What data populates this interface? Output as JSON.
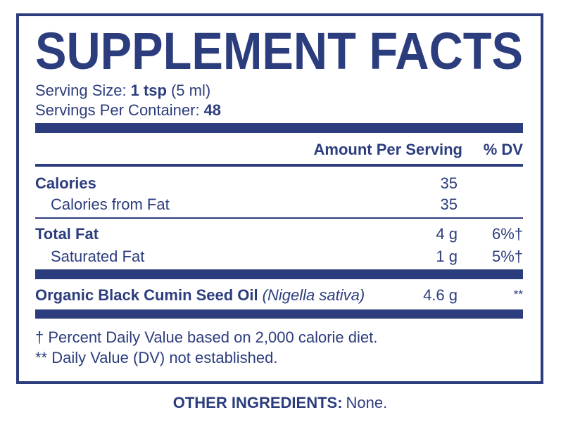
{
  "title": "SUPPLEMENT FACTS",
  "serving_size": {
    "label": "Serving Size:",
    "value": "1 tsp",
    "note": "(5 ml)"
  },
  "servings_per_container": {
    "label": "Servings Per Container:",
    "value": "48"
  },
  "columns": [
    "Amount Per Serving",
    "% DV"
  ],
  "rows": [
    {
      "name": "Calories",
      "amount": "35"
    },
    {
      "name": "Calories from Fat",
      "amount": "35"
    },
    {
      "name": "Total Fat",
      "amount": "4 g",
      "dv": "6%†"
    },
    {
      "name": "Saturated Fat",
      "amount": "1 g",
      "dv": "5%†"
    },
    {
      "name": "Organic Black Cumin Seed Oil",
      "latin": "(Nigella sativa)",
      "amount": "4.6 g",
      "dv": "**"
    }
  ],
  "footnotes": [
    "† Percent Daily Value based on 2,000 calorie diet.",
    "** Daily Value (DV) not established."
  ],
  "other_ingredients": {
    "label": "OTHER INGREDIENTS:",
    "value": "None."
  }
}
